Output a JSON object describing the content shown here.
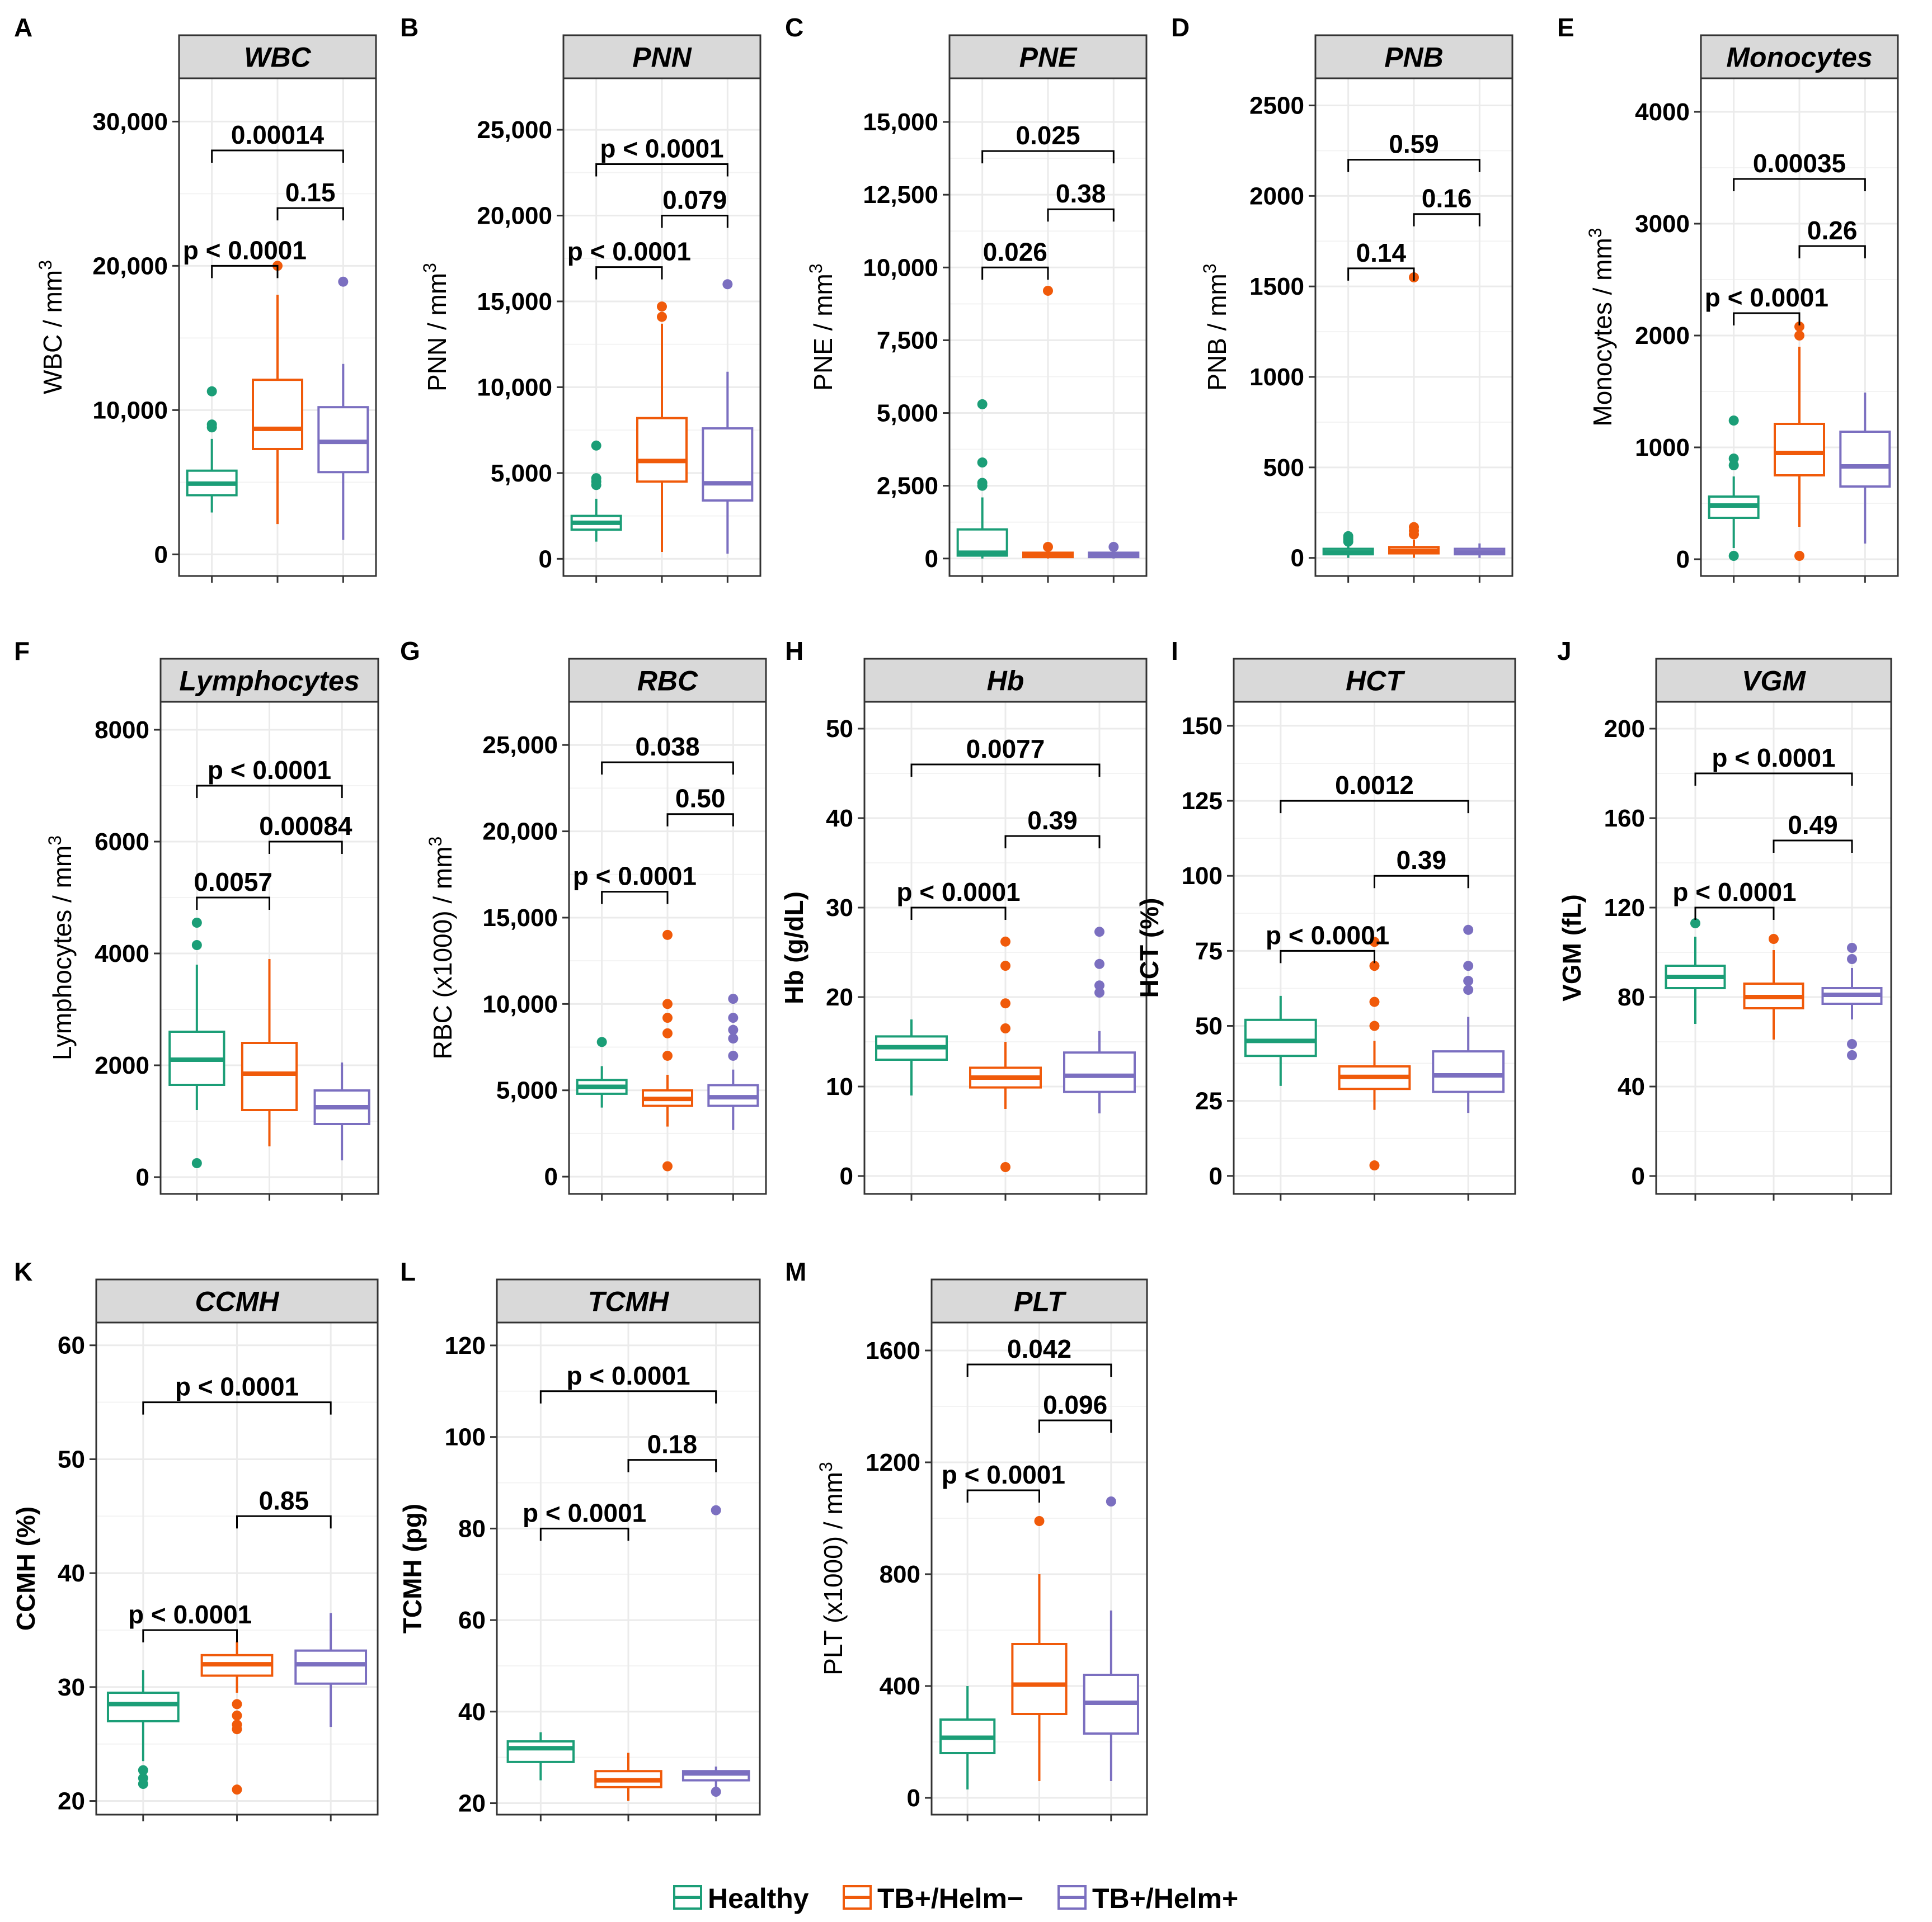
{
  "colors": {
    "Healthy": "#1b9e77",
    "TB+/Helm−": "#f05a0a",
    "TB+/Helm+": "#7b6fc0",
    "strip": "#d9d9d9",
    "grid": "#ebebeb"
  },
  "legend": {
    "items": [
      "Healthy",
      "TB+/Helm−",
      "TB+/Helm+"
    ]
  },
  "chart_data": [
    {
      "letter": "A",
      "title": "WBC",
      "type": "box",
      "ylabel": "WBC / mm",
      "ylabel_sup": "3",
      "ylabel_bold": false,
      "ylim": [
        -1500,
        33000
      ],
      "ticks": [
        0,
        10000,
        20000,
        30000
      ],
      "tick_labels": [
        "0",
        "10,000",
        "20,000",
        "30,000"
      ],
      "groups": [
        "Healthy",
        "TB+/Helm−",
        "TB+/Helm+"
      ],
      "boxes": [
        {
          "q1": 4100,
          "med": 4900,
          "q3": 5800,
          "lo": 2900,
          "hi": 8000,
          "out": [
            8800,
            9000,
            11300
          ]
        },
        {
          "q1": 7300,
          "med": 8700,
          "q3": 12100,
          "lo": 2100,
          "hi": 18000,
          "out": [
            20000
          ]
        },
        {
          "q1": 5700,
          "med": 7800,
          "q3": 10200,
          "lo": 1000,
          "hi": 13200,
          "out": [
            18900
          ]
        }
      ],
      "comparisons": [
        {
          "from": 0,
          "to": 1,
          "label": "p < 0.0001",
          "y": 20000
        },
        {
          "from": 1,
          "to": 2,
          "label": "0.15",
          "y": 24000
        },
        {
          "from": 0,
          "to": 2,
          "label": "0.00014",
          "y": 28000
        }
      ]
    },
    {
      "letter": "B",
      "title": "PNN",
      "type": "box",
      "ylabel": "PNN / mm",
      "ylabel_sup": "3",
      "ylabel_bold": false,
      "ylim": [
        -1000,
        28000
      ],
      "ticks": [
        0,
        5000,
        10000,
        15000,
        20000,
        25000
      ],
      "tick_labels": [
        "0",
        "5,000",
        "10,000",
        "15,000",
        "20,000",
        "25,000"
      ],
      "groups": [
        "Healthy",
        "TB+/Helm−",
        "TB+/Helm+"
      ],
      "boxes": [
        {
          "q1": 1700,
          "med": 2100,
          "q3": 2500,
          "lo": 1000,
          "hi": 3500,
          "out": [
            4300,
            4500,
            4700,
            6600
          ]
        },
        {
          "q1": 4500,
          "med": 5700,
          "q3": 8200,
          "lo": 400,
          "hi": 13700,
          "out": [
            14100,
            14700
          ]
        },
        {
          "q1": 3400,
          "med": 4400,
          "q3": 7600,
          "lo": 300,
          "hi": 10900,
          "out": [
            16000
          ]
        }
      ],
      "comparisons": [
        {
          "from": 0,
          "to": 1,
          "label": "p < 0.0001",
          "y": 17000
        },
        {
          "from": 1,
          "to": 2,
          "label": "0.079",
          "y": 20000
        },
        {
          "from": 0,
          "to": 2,
          "label": "p < 0.0001",
          "y": 23000
        }
      ]
    },
    {
      "letter": "C",
      "title": "PNE",
      "type": "box",
      "ylabel": "PNE / mm",
      "ylabel_sup": "3",
      "ylabel_bold": false,
      "ylim": [
        -600,
        16500
      ],
      "ticks": [
        0,
        2500,
        5000,
        7500,
        10000,
        12500,
        15000
      ],
      "tick_labels": [
        "0",
        "2,500",
        "5,000",
        "7,500",
        "10,000",
        "12,500",
        "15,000"
      ],
      "groups": [
        "Healthy",
        "TB+/Helm−",
        "TB+/Helm+"
      ],
      "boxes": [
        {
          "q1": 100,
          "med": 200,
          "q3": 1000,
          "lo": 0,
          "hi": 2100,
          "out": [
            2500,
            2600,
            3300,
            5300
          ]
        },
        {
          "q1": 50,
          "med": 150,
          "q3": 200,
          "lo": 0,
          "hi": 300,
          "out": [
            400,
            9200
          ]
        },
        {
          "q1": 50,
          "med": 100,
          "q3": 200,
          "lo": 0,
          "hi": 300,
          "out": [
            400
          ]
        }
      ],
      "comparisons": [
        {
          "from": 0,
          "to": 1,
          "label": "0.026",
          "y": 10000
        },
        {
          "from": 1,
          "to": 2,
          "label": "0.38",
          "y": 12000
        },
        {
          "from": 0,
          "to": 2,
          "label": "0.025",
          "y": 14000
        }
      ]
    },
    {
      "letter": "D",
      "title": "PNB",
      "type": "box",
      "ylabel": "PNB / mm",
      "ylabel_sup": "3",
      "ylabel_bold": false,
      "ylim": [
        -100,
        2650
      ],
      "ticks": [
        0,
        500,
        1000,
        1500,
        2000,
        2500
      ],
      "tick_labels": [
        "0",
        "500",
        "1000",
        "1500",
        "2000",
        "2500"
      ],
      "groups": [
        "Healthy",
        "TB+/Helm−",
        "TB+/Helm+"
      ],
      "boxes": [
        {
          "q1": 20,
          "med": 30,
          "q3": 50,
          "lo": 0,
          "hi": 80,
          "out": [
            90,
            100,
            110,
            120
          ]
        },
        {
          "q1": 25,
          "med": 40,
          "q3": 60,
          "lo": 0,
          "hi": 100,
          "out": [
            130,
            150,
            170,
            1550
          ]
        },
        {
          "q1": 20,
          "med": 30,
          "q3": 50,
          "lo": 0,
          "hi": 80,
          "out": []
        }
      ],
      "comparisons": [
        {
          "from": 0,
          "to": 1,
          "label": "0.14",
          "y": 1600
        },
        {
          "from": 1,
          "to": 2,
          "label": "0.16",
          "y": 1900
        },
        {
          "from": 0,
          "to": 2,
          "label": "0.59",
          "y": 2200
        }
      ]
    },
    {
      "letter": "E",
      "title": "Monocytes",
      "type": "box",
      "ylabel": "Monocytes / mm",
      "ylabel_sup": "3",
      "ylabel_bold": false,
      "ylim": [
        -150,
        4300
      ],
      "ticks": [
        0,
        1000,
        2000,
        3000,
        4000
      ],
      "tick_labels": [
        "0",
        "1000",
        "2000",
        "3000",
        "4000"
      ],
      "groups": [
        "Healthy",
        "TB+/Helm−",
        "TB+/Helm+"
      ],
      "boxes": [
        {
          "q1": 370,
          "med": 480,
          "q3": 560,
          "lo": 100,
          "hi": 740,
          "out": [
            30,
            840,
            900,
            1240
          ]
        },
        {
          "q1": 750,
          "med": 950,
          "q3": 1210,
          "lo": 290,
          "hi": 1900,
          "out": [
            30,
            2000,
            2080
          ]
        },
        {
          "q1": 650,
          "med": 830,
          "q3": 1140,
          "lo": 140,
          "hi": 1490,
          "out": []
        }
      ],
      "comparisons": [
        {
          "from": 0,
          "to": 1,
          "label": "p < 0.0001",
          "y": 2200
        },
        {
          "from": 1,
          "to": 2,
          "label": "0.26",
          "y": 2800
        },
        {
          "from": 0,
          "to": 2,
          "label": "0.00035",
          "y": 3400
        }
      ]
    },
    {
      "letter": "F",
      "title": "Lymphocytes",
      "type": "box",
      "ylabel": "Lymphocytes / mm",
      "ylabel_sup": "3",
      "ylabel_bold": false,
      "ylim": [
        -300,
        8500
      ],
      "ticks": [
        0,
        2000,
        4000,
        6000,
        8000
      ],
      "tick_labels": [
        "0",
        "2000",
        "4000",
        "6000",
        "8000"
      ],
      "groups": [
        "Healthy",
        "TB+/Helm−",
        "TB+/Helm+"
      ],
      "boxes": [
        {
          "q1": 1650,
          "med": 2100,
          "q3": 2600,
          "lo": 1200,
          "hi": 3800,
          "out": [
            250,
            4150,
            4550
          ]
        },
        {
          "q1": 1200,
          "med": 1850,
          "q3": 2400,
          "lo": 550,
          "hi": 3900,
          "out": []
        },
        {
          "q1": 950,
          "med": 1250,
          "q3": 1550,
          "lo": 300,
          "hi": 2050,
          "out": []
        }
      ],
      "comparisons": [
        {
          "from": 0,
          "to": 1,
          "label": "0.0057",
          "y": 5000
        },
        {
          "from": 1,
          "to": 2,
          "label": "0.00084",
          "y": 6000
        },
        {
          "from": 0,
          "to": 2,
          "label": "p < 0.0001",
          "y": 7000
        }
      ]
    },
    {
      "letter": "G",
      "title": "RBC",
      "type": "box",
      "ylabel": "RBC (x1000) / mm",
      "ylabel_sup": "3",
      "ylabel_bold": false,
      "ylim": [
        -1000,
        27500
      ],
      "ticks": [
        0,
        5000,
        10000,
        15000,
        20000,
        25000
      ],
      "tick_labels": [
        "0",
        "5,000",
        "10,000",
        "15,000",
        "20,000",
        "25,000"
      ],
      "groups": [
        "Healthy",
        "TB+/Helm−",
        "TB+/Helm+"
      ],
      "boxes": [
        {
          "q1": 4800,
          "med": 5200,
          "q3": 5600,
          "lo": 4000,
          "hi": 6400,
          "out": [
            7800
          ]
        },
        {
          "q1": 4100,
          "med": 4500,
          "q3": 5000,
          "lo": 2900,
          "hi": 5900,
          "out": [
            600,
            7000,
            8300,
            9200,
            10000,
            14000
          ]
        },
        {
          "q1": 4100,
          "med": 4600,
          "q3": 5300,
          "lo": 2700,
          "hi": 6200,
          "out": [
            7000,
            8000,
            8500,
            9200,
            10300
          ]
        }
      ],
      "comparisons": [
        {
          "from": 0,
          "to": 1,
          "label": "p < 0.0001",
          "y": 16500
        },
        {
          "from": 1,
          "to": 2,
          "label": "0.50",
          "y": 21000
        },
        {
          "from": 0,
          "to": 2,
          "label": "0.038",
          "y": 24000
        }
      ]
    },
    {
      "letter": "H",
      "title": "Hb",
      "type": "box",
      "ylabel": "Hb (g/dL)",
      "ylabel_sup": "",
      "ylabel_bold": true,
      "ylim": [
        -2,
        53
      ],
      "ticks": [
        0,
        10,
        20,
        30,
        40,
        50
      ],
      "tick_labels": [
        "0",
        "10",
        "20",
        "30",
        "40",
        "50"
      ],
      "groups": [
        "Healthy",
        "TB+/Helm−",
        "TB+/Helm+"
      ],
      "boxes": [
        {
          "q1": 13,
          "med": 14.4,
          "q3": 15.6,
          "lo": 9,
          "hi": 17.5,
          "out": []
        },
        {
          "q1": 9.9,
          "med": 11,
          "q3": 12.1,
          "lo": 7.5,
          "hi": 15,
          "out": [
            1,
            16.5,
            19.3,
            23.5,
            26.2
          ]
        },
        {
          "q1": 9.4,
          "med": 11.2,
          "q3": 13.8,
          "lo": 7,
          "hi": 16.2,
          "out": [
            20.5,
            21.3,
            23.7,
            27.3
          ]
        }
      ],
      "comparisons": [
        {
          "from": 0,
          "to": 1,
          "label": "p < 0.0001",
          "y": 30
        },
        {
          "from": 1,
          "to": 2,
          "label": "0.39",
          "y": 38
        },
        {
          "from": 0,
          "to": 2,
          "label": "0.0077",
          "y": 46
        }
      ]
    },
    {
      "letter": "I",
      "title": "HCT",
      "type": "box",
      "ylabel": "HCT (%)",
      "ylabel_sup": "",
      "ylabel_bold": true,
      "ylim": [
        -6,
        158
      ],
      "ticks": [
        0,
        25,
        50,
        75,
        100,
        125,
        150
      ],
      "tick_labels": [
        "0",
        "25",
        "50",
        "75",
        "100",
        "125",
        "150"
      ],
      "groups": [
        "Healthy",
        "TB+/Helm−",
        "TB+/Helm+"
      ],
      "boxes": [
        {
          "q1": 40,
          "med": 45,
          "q3": 52,
          "lo": 30,
          "hi": 60,
          "out": []
        },
        {
          "q1": 29,
          "med": 33,
          "q3": 36.5,
          "lo": 22,
          "hi": 45,
          "out": [
            3.5,
            50,
            58,
            70,
            78
          ]
        },
        {
          "q1": 28,
          "med": 33.5,
          "q3": 41.5,
          "lo": 21,
          "hi": 53,
          "out": [
            62,
            65,
            70,
            82
          ]
        }
      ],
      "comparisons": [
        {
          "from": 0,
          "to": 1,
          "label": "p < 0.0001",
          "y": 75
        },
        {
          "from": 1,
          "to": 2,
          "label": "0.39",
          "y": 100
        },
        {
          "from": 0,
          "to": 2,
          "label": "0.0012",
          "y": 125
        }
      ]
    },
    {
      "letter": "J",
      "title": "VGM",
      "type": "box",
      "ylabel": "VGM (fL)",
      "ylabel_sup": "",
      "ylabel_bold": true,
      "ylim": [
        -8,
        212
      ],
      "ticks": [
        0,
        40,
        80,
        120,
        160,
        200
      ],
      "tick_labels": [
        "0",
        "40",
        "80",
        "120",
        "160",
        "200"
      ],
      "groups": [
        "Healthy",
        "TB+/Helm−",
        "TB+/Helm+"
      ],
      "boxes": [
        {
          "q1": 84,
          "med": 89,
          "q3": 94,
          "lo": 68,
          "hi": 107,
          "out": [
            113
          ]
        },
        {
          "q1": 75,
          "med": 80,
          "q3": 86,
          "lo": 61,
          "hi": 101,
          "out": [
            106
          ]
        },
        {
          "q1": 77,
          "med": 81,
          "q3": 84,
          "lo": 70,
          "hi": 93,
          "out": [
            54,
            59,
            97,
            102
          ]
        }
      ],
      "comparisons": [
        {
          "from": 0,
          "to": 1,
          "label": "p < 0.0001",
          "y": 120
        },
        {
          "from": 1,
          "to": 2,
          "label": "0.49",
          "y": 150
        },
        {
          "from": 0,
          "to": 2,
          "label": "p < 0.0001",
          "y": 180
        }
      ]
    },
    {
      "letter": "K",
      "title": "CCMH",
      "type": "box",
      "ylabel": "CCMH (%)",
      "ylabel_sup": "",
      "ylabel_bold": true,
      "ylim": [
        18.8,
        62
      ],
      "ticks": [
        20,
        30,
        40,
        50,
        60
      ],
      "tick_labels": [
        "20",
        "30",
        "40",
        "50",
        "60"
      ],
      "groups": [
        "Healthy",
        "TB+/Helm−",
        "TB+/Helm+"
      ],
      "boxes": [
        {
          "q1": 27,
          "med": 28.5,
          "q3": 29.5,
          "lo": 23.5,
          "hi": 31.5,
          "out": [
            21.5,
            22,
            22.7
          ]
        },
        {
          "q1": 31,
          "med": 32,
          "q3": 32.8,
          "lo": 29.5,
          "hi": 34,
          "out": [
            21,
            26.3,
            26.7,
            27.5,
            28.5
          ]
        },
        {
          "q1": 30.3,
          "med": 32,
          "q3": 33.2,
          "lo": 26.5,
          "hi": 36.5,
          "out": []
        }
      ],
      "comparisons": [
        {
          "from": 0,
          "to": 1,
          "label": "p < 0.0001",
          "y": 35
        },
        {
          "from": 1,
          "to": 2,
          "label": "0.85",
          "y": 45
        },
        {
          "from": 0,
          "to": 2,
          "label": "p < 0.0001",
          "y": 55
        }
      ]
    },
    {
      "letter": "L",
      "title": "TCMH",
      "type": "box",
      "ylabel": "TCMH (pg)",
      "ylabel_sup": "",
      "ylabel_bold": true,
      "ylim": [
        17.5,
        125
      ],
      "ticks": [
        20,
        40,
        60,
        80,
        100,
        120
      ],
      "tick_labels": [
        "20",
        "40",
        "60",
        "80",
        "100",
        "120"
      ],
      "groups": [
        "Healthy",
        "TB+/Helm−",
        "TB+/Helm+"
      ],
      "boxes": [
        {
          "q1": 29,
          "med": 32,
          "q3": 33.5,
          "lo": 25,
          "hi": 35.5,
          "out": []
        },
        {
          "q1": 23.5,
          "med": 25,
          "q3": 27,
          "lo": 20.5,
          "hi": 31,
          "out": []
        },
        {
          "q1": 25,
          "med": 26.5,
          "q3": 27,
          "lo": 23,
          "hi": 28,
          "out": [
            22.5,
            84
          ]
        }
      ],
      "comparisons": [
        {
          "from": 0,
          "to": 1,
          "label": "p < 0.0001",
          "y": 80
        },
        {
          "from": 1,
          "to": 2,
          "label": "0.18",
          "y": 95
        },
        {
          "from": 0,
          "to": 2,
          "label": "p < 0.0001",
          "y": 110
        }
      ]
    },
    {
      "letter": "M",
      "title": "PLT",
      "type": "box",
      "ylabel": "PLT (x1000) / mm",
      "ylabel_sup": "3",
      "ylabel_bold": false,
      "ylim": [
        -60,
        1700
      ],
      "ticks": [
        0,
        400,
        800,
        1200,
        1600
      ],
      "tick_labels": [
        "0",
        "400",
        "800",
        "1200",
        "1600"
      ],
      "groups": [
        "Healthy",
        "TB+/Helm−",
        "TB+/Helm+"
      ],
      "boxes": [
        {
          "q1": 160,
          "med": 215,
          "q3": 280,
          "lo": 30,
          "hi": 400,
          "out": []
        },
        {
          "q1": 300,
          "med": 405,
          "q3": 550,
          "lo": 60,
          "hi": 800,
          "out": [
            990
          ]
        },
        {
          "q1": 230,
          "med": 340,
          "q3": 440,
          "lo": 60,
          "hi": 670,
          "out": [
            1060
          ]
        }
      ],
      "comparisons": [
        {
          "from": 0,
          "to": 1,
          "label": "p < 0.0001",
          "y": 1100
        },
        {
          "from": 1,
          "to": 2,
          "label": "0.096",
          "y": 1350
        },
        {
          "from": 0,
          "to": 2,
          "label": "0.042",
          "y": 1550
        }
      ]
    }
  ]
}
